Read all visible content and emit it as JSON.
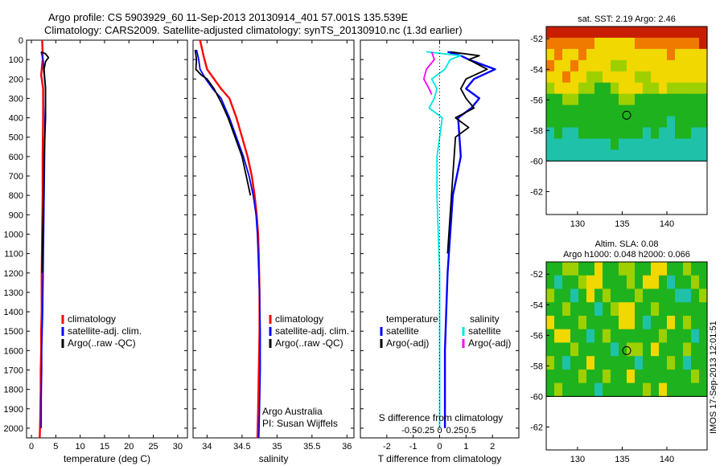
{
  "header": {
    "line1": "Argo profile: CS 5903929_60 11-Sep-2013 20130914_401 57.001S 135.539E",
    "line2": "Climatology: CARS2009. Satellite-adjusted climatology: synTS_20130910.nc (1.3d earlier)"
  },
  "colors": {
    "climatology": "#ff0000",
    "satellite": "#0000ff",
    "argo": "#000000",
    "salinity_sat": "#00e5e5",
    "salinity_argo": "#ff00ff"
  },
  "depth_axis": {
    "ylim": [
      0,
      2050
    ],
    "ticks": [
      0,
      100,
      200,
      300,
      400,
      500,
      600,
      700,
      800,
      900,
      1000,
      1100,
      1200,
      1300,
      1400,
      1500,
      1600,
      1700,
      1800,
      1900,
      2000
    ]
  },
  "chart_data": [
    {
      "type": "line",
      "id": "temperature",
      "xlabel": "temperature (deg C)",
      "xlim": [
        -1,
        32
      ],
      "xticks": [
        0,
        5,
        10,
        15,
        20,
        25,
        30
      ],
      "ylim": [
        0,
        2050
      ],
      "legend": [
        "climatology",
        "satellite-adj. clim.",
        "Argo(..raw -QC)"
      ],
      "legend_placement": "lower-left",
      "series": [
        {
          "name": "climatology",
          "color": "#ff0000",
          "x": [
            2.2,
            2.3,
            2.3,
            2.0,
            2.4,
            2.4,
            2.4,
            2.3,
            2.3,
            2.2,
            2.1,
            2.1,
            2.0,
            2.0,
            1.9,
            1.9,
            1.8,
            1.7
          ],
          "y": [
            0,
            60,
            100,
            180,
            250,
            300,
            400,
            600,
            800,
            1000,
            1200,
            1400,
            1500,
            1600,
            1700,
            1800,
            1950,
            2050
          ]
        },
        {
          "name": "satellite-adj. clim.",
          "color": "#0000ff",
          "x": [
            2.0,
            2.4,
            2.5,
            2.9,
            2.9,
            2.8,
            2.7,
            2.6,
            2.5,
            2.4,
            2.3,
            2.2,
            2.1,
            2.1,
            2.0,
            2.0
          ],
          "y": [
            60,
            100,
            150,
            250,
            300,
            400,
            600,
            800,
            1000,
            1200,
            1400,
            1500,
            1600,
            1700,
            1850,
            2000
          ]
        },
        {
          "name": "Argo(..raw -QC)",
          "color": "#000000",
          "x": [
            2.0,
            2.9,
            3.5,
            2.9,
            2.6,
            2.9,
            2.9,
            2.6,
            2.5,
            2.3,
            2.2
          ],
          "y": [
            60,
            70,
            90,
            110,
            150,
            250,
            400,
            600,
            800,
            1000,
            1200
          ]
        }
      ]
    },
    {
      "type": "line",
      "id": "salinity",
      "xlabel": "salinity",
      "xlim": [
        33.8,
        36.1
      ],
      "xticks": [
        34,
        34.5,
        35,
        35.5,
        36
      ],
      "ylim": [
        0,
        2050
      ],
      "legend": [
        "climatology",
        "satellite-adj. clim.",
        "Argo(..raw -QC)"
      ],
      "legend_placement": "lower-right",
      "annotations": [
        "Argo Australia",
        "PI: Susan Wijffels"
      ],
      "series": [
        {
          "name": "climatology",
          "color": "#ff0000",
          "x": [
            33.9,
            33.95,
            34.0,
            34.1,
            34.2,
            34.32,
            34.42,
            34.5,
            34.58,
            34.64,
            34.68,
            34.71,
            34.73,
            34.74,
            34.75,
            34.75,
            34.74,
            34.73,
            34.72
          ],
          "y": [
            0,
            80,
            150,
            200,
            250,
            300,
            400,
            500,
            600,
            700,
            800,
            900,
            1000,
            1100,
            1300,
            1500,
            1700,
            1900,
            2050
          ]
        },
        {
          "name": "satellite-adj. clim.",
          "color": "#0000ff",
          "x": [
            33.85,
            33.88,
            33.9,
            33.98,
            34.08,
            34.2,
            34.32,
            34.42,
            34.52,
            34.6,
            34.66,
            34.7,
            34.72,
            34.73,
            34.75,
            34.76,
            34.76,
            34.75,
            34.74
          ],
          "y": [
            50,
            100,
            150,
            200,
            250,
            300,
            400,
            500,
            600,
            700,
            800,
            900,
            1000,
            1100,
            1300,
            1500,
            1700,
            1900,
            2050
          ]
        },
        {
          "name": "Argo(..raw -QC)",
          "color": "#000000",
          "x": [
            33.83,
            33.85,
            33.84,
            33.92,
            34.0,
            34.1,
            34.17,
            34.2,
            34.3,
            34.4,
            34.5,
            34.56,
            34.62
          ],
          "y": [
            50,
            100,
            150,
            180,
            200,
            250,
            300,
            320,
            400,
            500,
            600,
            700,
            800
          ]
        }
      ]
    },
    {
      "type": "line",
      "id": "difference",
      "xlabel": "T difference from climatology",
      "x2label": "S difference from climatology",
      "xlim": [
        -3,
        3
      ],
      "xticks": [
        -2,
        -1,
        0,
        1,
        2
      ],
      "x2ticks": [
        -0.5,
        -0.25,
        0,
        0.25,
        0.5
      ],
      "ylim": [
        0,
        2050
      ],
      "legend_titles": [
        "temperature",
        "salinity"
      ],
      "legend": [
        "satellite",
        "Argo(-adj)",
        "satellite",
        "Argo(-adj)"
      ],
      "legend_placement": "lower",
      "series": [
        {
          "name": "temperature satellite",
          "color": "#0000ff",
          "x": [
            0.3,
            0.8,
            1.1,
            2.1,
            1.3,
            1.0,
            1.5,
            1.2,
            0.7,
            0.8,
            0.5,
            0.4,
            0.3,
            0.25,
            0.2,
            0.2,
            0.2
          ],
          "y": [
            60,
            80,
            100,
            150,
            200,
            250,
            300,
            350,
            400,
            600,
            800,
            1000,
            1200,
            1400,
            1600,
            1800,
            2000
          ]
        },
        {
          "name": "temperature Argo(-adj)",
          "color": "#000000",
          "x": [
            0.4,
            1.5,
            1.1,
            1.8,
            1.0,
            0.8,
            1.0,
            1.3,
            0.6,
            1.1,
            0.6,
            0.5,
            0.4,
            0.3
          ],
          "y": [
            60,
            80,
            100,
            150,
            200,
            250,
            300,
            350,
            400,
            450,
            500,
            700,
            900,
            1100
          ]
        },
        {
          "name": "salinity satellite",
          "color": "#00e5e5",
          "x": [
            -0.5,
            0.8,
            0.4,
            0.2,
            -0.3,
            -0.1,
            -0.2,
            -0.4,
            0.1,
            0.0,
            -0.1,
            -0.1,
            0.0,
            0.0,
            0.0
          ],
          "y": [
            60,
            80,
            100,
            150,
            200,
            250,
            300,
            350,
            400,
            500,
            600,
            800,
            1200,
            1600,
            2000
          ]
        },
        {
          "name": "salinity Argo(-adj)",
          "color": "#ff00ff",
          "x": [
            -0.3,
            -0.2,
            -0.5,
            -0.6,
            -0.4,
            -0.3
          ],
          "y": [
            60,
            100,
            150,
            200,
            250,
            280
          ]
        }
      ]
    },
    {
      "type": "heatmap",
      "id": "sst-map",
      "title": "sat. SST: 2.19 Argo: 2.46",
      "xlim": [
        126.5,
        144.5
      ],
      "ylim": [
        -63.5,
        -51.2
      ],
      "xticks": [
        130,
        135,
        140
      ],
      "yticks": [
        -52,
        -54,
        -56,
        -58,
        -60,
        -62
      ],
      "data_rows": [
        "RRRRRRRRRRRRRRRRRRRR",
        "OOOOOOYYYYYOOOOOOOOR",
        "YOYYOYYYYYYYYYYOYYYY",
        "OYYOYYYYLLYYYYYYYYYY",
        "YYOYYLLYYYYLLYYYYYYY",
        "LYYYLLGGLYYYLLYLLLLL",
        "GGLLGGGGGLLGGGGGGGGG",
        "GGGGGGGGGGGGGGGGGGGG",
        "GGGGGGGGGGGGGGGTGGGG",
        "TGTTGGGGGGGGTGTTGGTT",
        "TTTTTTTTGTTTTTTTTTTT",
        "TTTTTTTTTTTTTTTTTTTT"
      ],
      "marker": {
        "lon": 135.5,
        "lat": -57.0
      }
    },
    {
      "type": "heatmap",
      "id": "sla-map",
      "title": "Altim. SLA: 0.08",
      "subtitle": "Argo h1000: 0.048 h2000: 0.066",
      "xlim": [
        126.5,
        144.5
      ],
      "ylim": [
        -63.5,
        -51.2
      ],
      "xticks": [
        130,
        135,
        140
      ],
      "yticks": [
        -52,
        -54,
        -56,
        -58,
        -60,
        -62
      ],
      "data_rows": [
        "GGLLGGYGGLLGGYYGGLGG",
        "GTGGLYYGGGLGYYGTGGLG",
        "LGGTGYGLGGGLGGGGTTGL",
        "GGLGGGTGLYYGGLGGGGGG",
        "YGGGLGGGGYYGTGGYGLGG",
        "GYYGGTGLGGGGGGLGGGTG",
        "GGGLGGGGTGLLGYGGGLGG",
        "LGTGGYGGGGGTGGGLGTGG",
        "GGGGLGGLGGYGGGGGGGLG",
        "GLGGGGTGGGGGLGYGGGGG"
      ],
      "marker": {
        "lon": 135.5,
        "lat": -57.0
      }
    }
  ],
  "timestamp": "IMOS 17-Sep-2013 12:01:51"
}
